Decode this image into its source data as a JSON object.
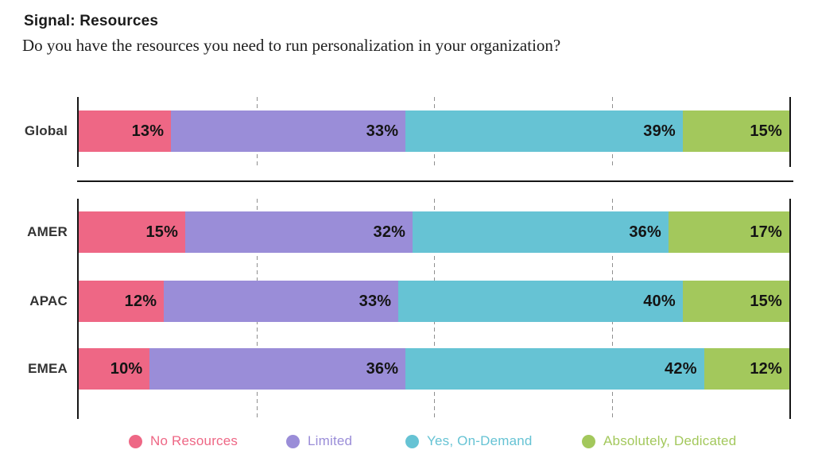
{
  "header": {
    "title": "Signal: Resources",
    "subtitle": "Do you have the resources you need to run personalization in your organization?"
  },
  "chart_data": {
    "type": "bar",
    "stacked": true,
    "orientation": "horizontal",
    "unit": "%",
    "xlim": [
      0,
      100
    ],
    "gridlines_pct": [
      25,
      50,
      75
    ],
    "grid_style": "dashed-vertical",
    "legend_position": "bottom",
    "value_label_format": "{value}%",
    "series_names": [
      "No Resources",
      "Limited",
      "Yes, On-Demand",
      "Absolutely, Dedicated"
    ],
    "series_colors": [
      "#EE6785",
      "#9A8DD8",
      "#66C3D4",
      "#A3C85C"
    ],
    "groups": [
      {
        "name": "global",
        "rows": [
          {
            "label": "Global",
            "values": [
              13,
              33,
              39,
              15
            ]
          }
        ]
      },
      {
        "name": "regions",
        "rows": [
          {
            "label": "AMER",
            "values": [
              15,
              32,
              36,
              17
            ]
          },
          {
            "label": "APAC",
            "values": [
              12,
              33,
              40,
              15
            ]
          },
          {
            "label": "EMEA",
            "values": [
              10,
              36,
              42,
              12
            ]
          }
        ]
      }
    ]
  },
  "legend": {
    "items": [
      {
        "label": "No Resources",
        "color": "#EE6785"
      },
      {
        "label": "Limited",
        "color": "#9A8DD8"
      },
      {
        "label": "Yes, On-Demand",
        "color": "#66C3D4"
      },
      {
        "label": "Absolutely, Dedicated",
        "color": "#A3C85C"
      }
    ]
  }
}
